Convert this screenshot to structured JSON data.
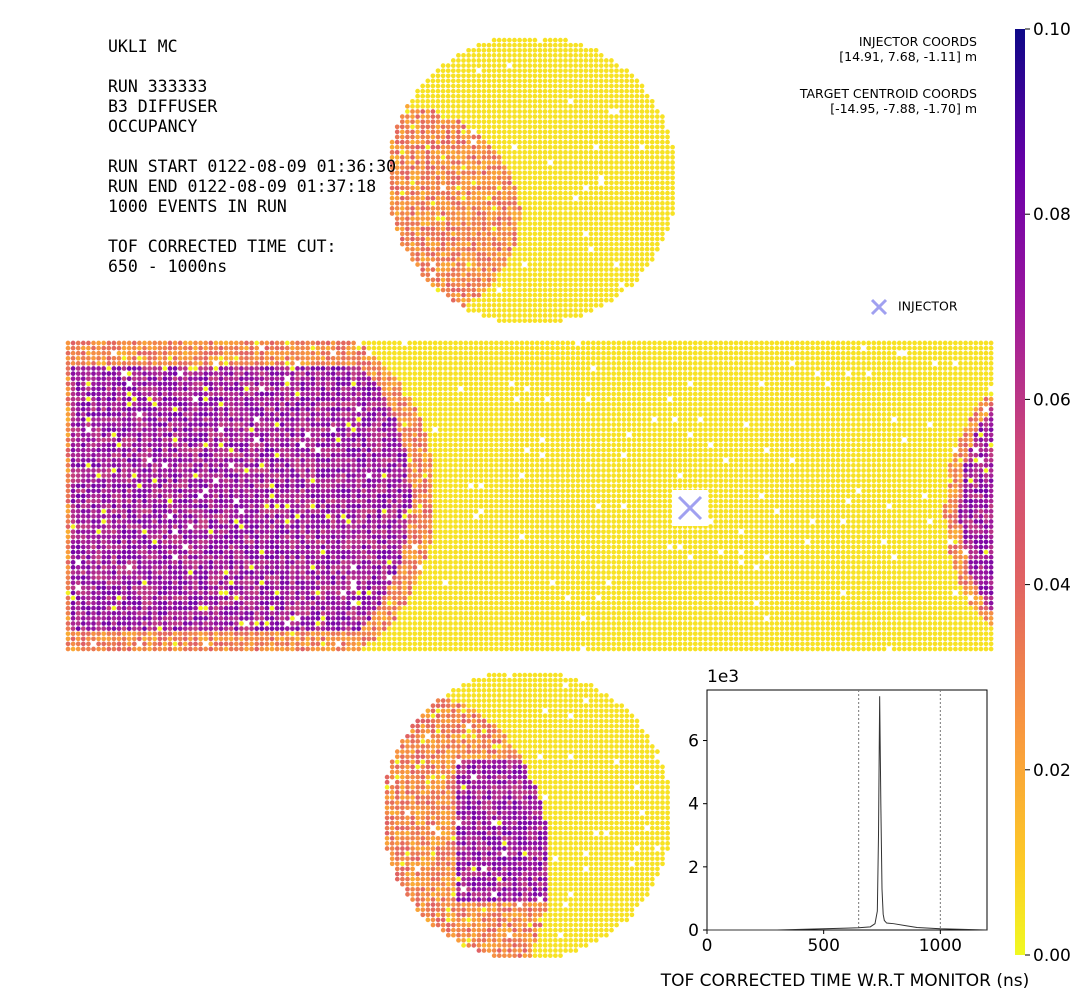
{
  "info": {
    "lines": [
      "UKLI MC",
      "",
      "RUN 333333",
      "B3 DIFFUSER",
      "OCCUPANCY",
      "",
      "RUN START 0122-08-09 01:36:30",
      "RUN END 0122-08-09 01:37:18",
      "1000 EVENTS IN RUN",
      "",
      "TOF CORRECTED TIME CUT:",
      "650 - 1000ns"
    ]
  },
  "coords": {
    "injector_title": "INJECTOR COORDS",
    "injector_value": "[14.91, 7.68, -1.11] m",
    "target_title": "TARGET CENTROID COORDS",
    "target_value": "[-14.95, -7.88, -1.70] m"
  },
  "legend": {
    "injector_label": "INJECTOR",
    "marker_color": "#a0a0f0"
  },
  "colorbar": {
    "colormap": "plasma_r",
    "min": 0.0,
    "max": 0.1,
    "tick_labels": [
      "0.00",
      "0.02",
      "0.04",
      "0.06",
      "0.08",
      "0.10"
    ]
  },
  "chart_data": [
    {
      "type": "heatmap",
      "title": "OCCUPANCY",
      "description_levels": {
        "background_yellow": 0.005,
        "orange_ring": 0.03,
        "purple_core": 0.07
      },
      "colorbar_range": [
        0.0,
        0.1
      ]
    },
    {
      "type": "line",
      "xlabel": "TOF CORRECTED TIME W.R.T MONITOR (ns)",
      "ylabel": "",
      "y_multiplier_label": "1e3",
      "xlim": [
        0,
        1200
      ],
      "ylim": [
        0,
        7.6
      ],
      "x_ticks": [
        0,
        500,
        1000
      ],
      "x_tick_labels": [
        "0",
        "500",
        "1000"
      ],
      "y_ticks": [
        0,
        2,
        4,
        6
      ],
      "y_tick_labels": [
        "0",
        "2",
        "4",
        "6"
      ],
      "cut_lines": [
        650,
        1000
      ],
      "x": [
        0,
        300,
        400,
        500,
        600,
        650,
        700,
        720,
        730,
        735,
        740,
        745,
        750,
        755,
        760,
        770,
        800,
        850,
        900,
        1000,
        1100,
        1200
      ],
      "y": [
        0,
        0.0,
        0.02,
        0.04,
        0.06,
        0.07,
        0.1,
        0.2,
        0.6,
        3.0,
        7.4,
        4.0,
        1.3,
        0.5,
        0.3,
        0.22,
        0.2,
        0.14,
        0.08,
        0.04,
        0.02,
        0.0
      ]
    }
  ]
}
